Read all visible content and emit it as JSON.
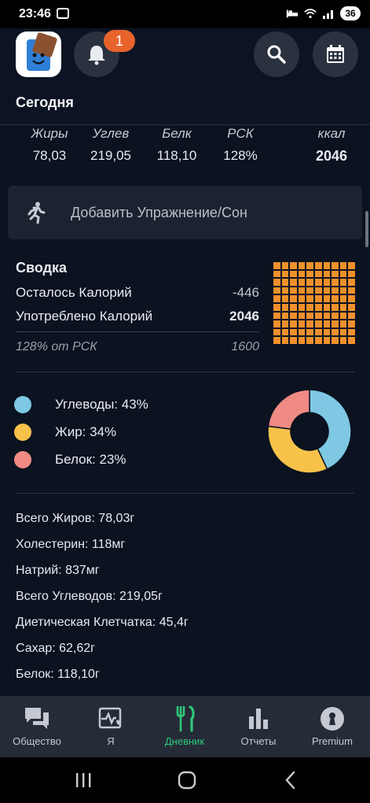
{
  "status_bar": {
    "time": "23:46",
    "battery": "36"
  },
  "header": {
    "notification_count": "1",
    "title": "Сегодня"
  },
  "macros": [
    {
      "label": "Жиры",
      "value": "78,03"
    },
    {
      "label": "Углев",
      "value": "219,05"
    },
    {
      "label": "Белк",
      "value": "118,10"
    },
    {
      "label": "РСК",
      "value": "128%"
    },
    {
      "label": "ккал",
      "value": "2046"
    }
  ],
  "exercise": {
    "label": "Добавить Упражнение/Сон"
  },
  "summary": {
    "title": "Сводка",
    "remaining_label": "Осталось Калорий",
    "remaining_value": "-446",
    "consumed_label": "Употреблено Калорий",
    "consumed_value": "2046",
    "rdi_label": "128% от РСК",
    "rdi_value": "1600",
    "grid_fill_fraction": 1.0
  },
  "macro_breakdown": {
    "items": [
      {
        "label": "Углеводы: 43%",
        "percent": 43,
        "color": "#7ec8e3"
      },
      {
        "label": "Жир: 34%",
        "percent": 34,
        "color": "#f7c24a"
      },
      {
        "label": "Белок: 23%",
        "percent": 23,
        "color": "#f08a84"
      }
    ]
  },
  "nutrients": [
    "Всего Жиров: 78,03г",
    "Холестерин: 118мг",
    "Натрий: 837мг",
    "Всего Углеводов: 219,05г",
    "Диетическая Клетчатка: 45,4г",
    "Сахар: 62,62г",
    "Белок: 118,10г"
  ],
  "bottom_nav": [
    {
      "label": "Общество",
      "icon": "chat-icon"
    },
    {
      "label": "Я",
      "icon": "health-icon"
    },
    {
      "label": "Дневник",
      "icon": "fork-knife-icon",
      "active": true
    },
    {
      "label": "Отчеты",
      "icon": "bar-chart-icon"
    },
    {
      "label": "Premium",
      "icon": "keyhole-icon"
    }
  ],
  "colors": {
    "accent_green": "#2fc97b",
    "badge_orange": "#e8632b",
    "grid_orange": "#f0902c"
  }
}
